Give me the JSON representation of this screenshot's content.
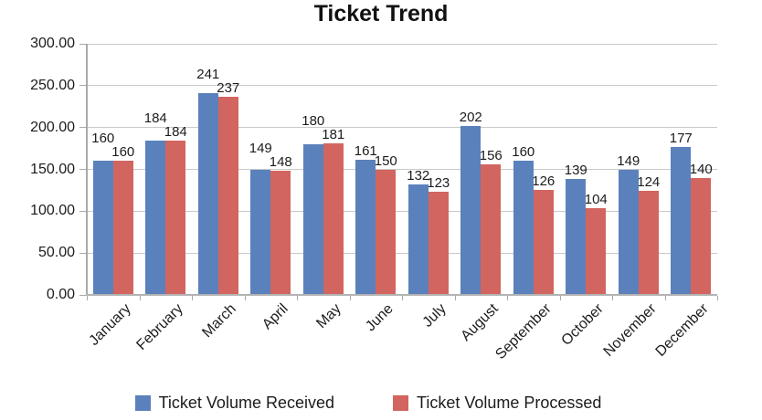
{
  "chart_data": {
    "type": "bar",
    "title": "Ticket Trend",
    "categories": [
      "January",
      "February",
      "March",
      "April",
      "May",
      "June",
      "July",
      "August",
      "September",
      "October",
      "November",
      "December"
    ],
    "series": [
      {
        "name": "Ticket Volume Received",
        "color": "#5b81bc",
        "values": [
          160,
          184,
          241,
          149,
          180,
          161,
          132,
          202,
          160,
          139,
          149,
          177
        ]
      },
      {
        "name": "Ticket Volume Processed",
        "color": "#d2655f",
        "values": [
          160,
          184,
          237,
          148,
          181,
          150,
          123,
          156,
          126,
          104,
          124,
          140
        ]
      }
    ],
    "ylim": [
      0,
      300
    ],
    "yticks": [
      "300.00",
      "250.00",
      "200.00",
      "150.00",
      "100.00",
      "50.00",
      "0.00"
    ],
    "grid": true,
    "legend_position": "bottom",
    "axis_color": "#a9a9a9",
    "gridline_color": "#c9c9c9"
  }
}
